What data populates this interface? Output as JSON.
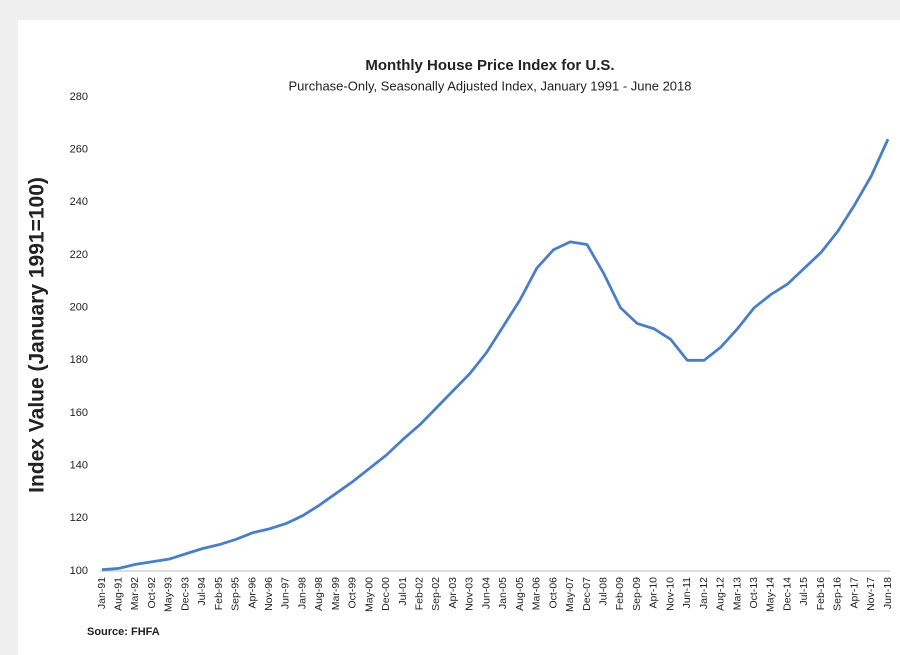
{
  "chart_data": {
    "type": "line",
    "title": "Monthly House Price Index for U.S.",
    "subtitle": "Purchase-Only, Seasonally Adjusted Index, January 1991 - June 2018",
    "y_label": "Index Value (January 1991=100)",
    "source": "Source: FHFA",
    "categories": [
      "Jan-91",
      "Aug-91",
      "Mar-92",
      "Oct-92",
      "May-93",
      "Dec-93",
      "Jul-94",
      "Feb-95",
      "Sep-95",
      "Apr-96",
      "Nov-96",
      "Jun-97",
      "Jan-98",
      "Aug-98",
      "Mar-99",
      "Oct-99",
      "May-00",
      "Dec-00",
      "Jul-01",
      "Feb-02",
      "Sep-02",
      "Apr-03",
      "Nov-03",
      "Jun-04",
      "Jan-05",
      "Aug-05",
      "Mar-06",
      "Oct-06",
      "May-07",
      "Dec-07",
      "Jul-08",
      "Feb-09",
      "Sep-09",
      "Apr-10",
      "Nov-10",
      "Jun-11",
      "Jan-12",
      "Aug-12",
      "Mar-13",
      "Oct-13",
      "May-14",
      "Dec-14",
      "Jul-15",
      "Feb-16",
      "Sep-16",
      "Apr-17",
      "Nov-17",
      "Jun-18"
    ],
    "values": [
      100.5,
      101,
      102.5,
      103.5,
      104.5,
      106.5,
      108.5,
      110,
      112,
      114.5,
      116,
      118,
      121,
      125,
      129.5,
      134,
      139,
      144,
      150,
      155.5,
      162,
      168.5,
      175,
      183,
      193,
      203,
      215,
      222,
      225,
      224,
      213,
      200,
      194,
      192,
      188,
      180,
      180,
      185,
      192,
      200,
      205,
      209,
      215,
      221,
      229,
      239,
      250,
      264
    ],
    "color": "#4a7fc6",
    "ylim": [
      100,
      280
    ],
    "yticks": [
      100,
      120,
      140,
      160,
      180,
      200,
      220,
      240,
      260,
      280
    ],
    "grid": false
  }
}
